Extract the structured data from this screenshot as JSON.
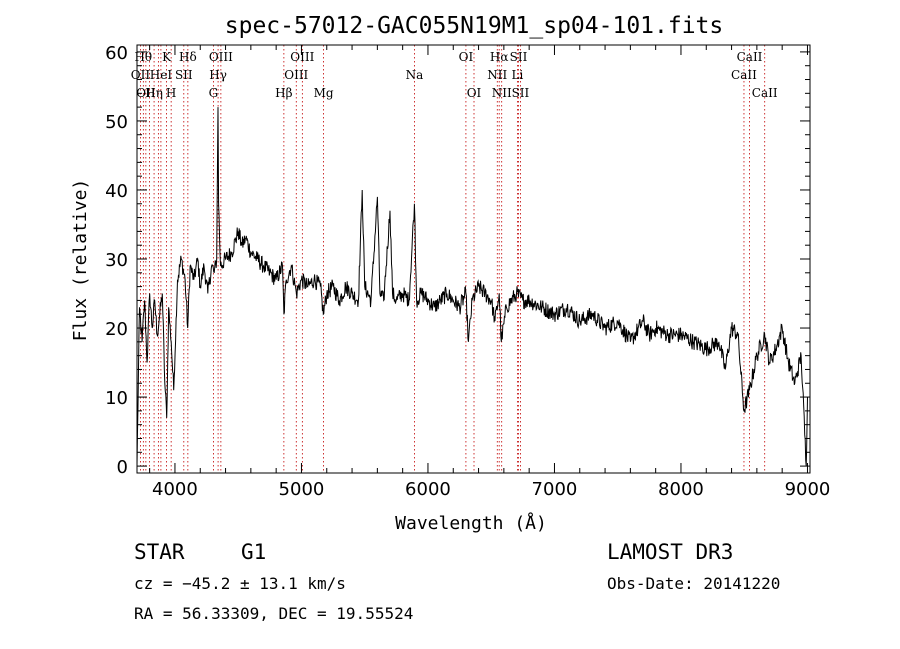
{
  "chart_data": {
    "type": "line",
    "title": "spec-57012-GAC055N19M1_sp04-101.fits",
    "xlabel": "Wavelength (Å)",
    "ylabel": "Flux (relative)",
    "xlim": [
      3700,
      9020
    ],
    "ylim": [
      -1,
      61
    ],
    "xticks": [
      4000,
      5000,
      6000,
      7000,
      8000,
      9000
    ],
    "yticks": [
      0,
      10,
      20,
      30,
      40,
      50,
      60
    ],
    "grid": false,
    "series": [
      {
        "name": "flux",
        "x": [
          3700,
          3720,
          3740,
          3760,
          3780,
          3800,
          3820,
          3840,
          3860,
          3880,
          3900,
          3920,
          3935,
          3950,
          3970,
          3990,
          4020,
          4050,
          4080,
          4101,
          4120,
          4150,
          4180,
          4200,
          4230,
          4260,
          4290,
          4310,
          4330,
          4340,
          4345,
          4360,
          4400,
          4450,
          4500,
          4530,
          4560,
          4600,
          4650,
          4700,
          4750,
          4800,
          4850,
          4861,
          4880,
          4920,
          4960,
          5000,
          5050,
          5100,
          5150,
          5173,
          5200,
          5250,
          5300,
          5350,
          5400,
          5450,
          5480,
          5500,
          5550,
          5600,
          5620,
          5650,
          5700,
          5720,
          5750,
          5800,
          5850,
          5893,
          5910,
          5950,
          6000,
          6050,
          6100,
          6150,
          6200,
          6250,
          6300,
          6320,
          6350,
          6400,
          6450,
          6500,
          6530,
          6563,
          6580,
          6620,
          6700,
          6750,
          6800,
          6900,
          7000,
          7100,
          7200,
          7300,
          7400,
          7500,
          7600,
          7700,
          7750,
          7800,
          7900,
          8000,
          8100,
          8200,
          8300,
          8350,
          8400,
          8450,
          8498,
          8542,
          8600,
          8662,
          8700,
          8750,
          8800,
          8850,
          8900,
          8950,
          8990,
          9000
        ],
        "values": [
          0,
          23,
          18,
          24,
          15,
          25,
          20,
          24,
          19,
          22,
          25,
          12,
          7,
          23,
          18,
          11,
          27,
          30,
          27,
          20,
          29,
          27,
          30,
          26,
          29,
          25,
          29,
          28,
          30,
          52,
          38,
          29,
          30,
          31,
          34,
          32,
          33,
          31,
          30,
          29,
          28,
          27,
          29,
          22,
          27,
          29,
          25,
          27,
          26,
          27,
          26,
          22,
          25,
          26,
          24,
          26,
          25,
          24,
          40,
          26,
          24,
          39,
          25,
          24,
          37,
          25,
          24,
          25,
          24,
          38,
          24,
          25,
          24,
          23,
          24,
          25,
          24,
          23,
          25,
          18,
          24,
          26,
          25,
          24,
          21,
          25,
          18,
          23,
          25,
          24,
          24,
          23,
          22,
          23,
          21,
          22,
          20,
          21,
          18,
          21,
          19,
          20,
          19,
          19,
          18,
          17,
          18,
          14,
          20,
          19,
          8,
          11,
          16,
          19,
          15,
          17,
          20,
          15,
          12,
          16,
          0,
          10
        ]
      }
    ],
    "lines": [
      {
        "x": 3727,
        "label": "OII",
        "row": 2
      },
      {
        "x": 3750,
        "label": "Hθ",
        "row": 1
      },
      {
        "x": 3770,
        "label": "OII",
        "row": 3
      },
      {
        "x": 3798,
        "label": "",
        "row": 0
      },
      {
        "x": 3835,
        "label": "Hη",
        "row": 3
      },
      {
        "x": 3869,
        "label": "",
        "row": 0
      },
      {
        "x": 3889,
        "label": "HeI",
        "row": 2
      },
      {
        "x": 3934,
        "label": "K",
        "row": 1
      },
      {
        "x": 3970,
        "label": "H",
        "row": 3
      },
      {
        "x": 4070,
        "label": "SII",
        "row": 2
      },
      {
        "x": 4102,
        "label": "Hδ",
        "row": 1
      },
      {
        "x": 4304,
        "label": "G",
        "row": 3
      },
      {
        "x": 4341,
        "label": "Hγ",
        "row": 2
      },
      {
        "x": 4363,
        "label": "OIII",
        "row": 1
      },
      {
        "x": 4861,
        "label": "Hβ",
        "row": 3
      },
      {
        "x": 4959,
        "label": "OIII",
        "row": 2
      },
      {
        "x": 5007,
        "label": "OIII",
        "row": 1
      },
      {
        "x": 5175,
        "label": "Mg",
        "row": 3
      },
      {
        "x": 5893,
        "label": "Na",
        "row": 2
      },
      {
        "x": 6300,
        "label": "OI",
        "row": 1
      },
      {
        "x": 6364,
        "label": "OI",
        "row": 3
      },
      {
        "x": 6548,
        "label": "NII",
        "row": 2
      },
      {
        "x": 6563,
        "label": "Hα",
        "row": 1
      },
      {
        "x": 6583,
        "label": "NII",
        "row": 3
      },
      {
        "x": 6707,
        "label": "Li",
        "row": 2
      },
      {
        "x": 6716,
        "label": "SII",
        "row": 1
      },
      {
        "x": 6731,
        "label": "SII",
        "row": 3
      },
      {
        "x": 8498,
        "label": "CaII",
        "row": 2
      },
      {
        "x": 8542,
        "label": "CaII",
        "row": 1
      },
      {
        "x": 8662,
        "label": "CaII",
        "row": 3
      }
    ]
  },
  "info": {
    "class": "STAR",
    "subclass": "G1",
    "survey": "LAMOST DR3",
    "cz": "cz = −45.2 ± 13.1 km/s",
    "obs_date": "Obs-Date: 20141220",
    "radec": "RA =  56.33309, DEC =  19.55524"
  }
}
